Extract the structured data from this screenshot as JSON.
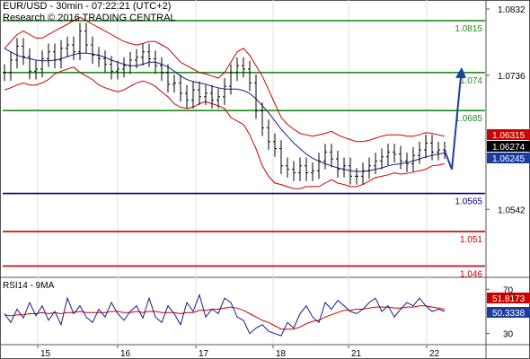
{
  "header": {
    "line1": "EUR/USD - 30min - 07:22:21 (UTC+2)",
    "line2": "Research © 2016 TRADING CENTRAL"
  },
  "rsi_title": "RSI14 - 9MA",
  "colors": {
    "price": "#000000",
    "bollinger": "#cc0000",
    "moving_average": "#1a1a8c",
    "resistance": "#228b22",
    "pivot": "#00008b",
    "support": "#cc0000",
    "arrow": "#1e3fa0",
    "rsi": "#1a1a8c",
    "rsi_ma": "#cc0000"
  },
  "chart_data": [
    {
      "type": "line",
      "subtype": "candlestick-bars",
      "ylim": [
        1.0445,
        1.0845
      ],
      "x_ticks": [
        "15",
        "16",
        "17",
        "18",
        "21",
        "22"
      ],
      "y_ticks": [
        "1.0832",
        "1.0736",
        "1.0542"
      ],
      "series": [
        {
          "values": [
            1.074,
            1.0758,
            1.0778,
            1.0763,
            1.0742,
            1.0745,
            1.076,
            1.077,
            1.0758,
            1.0775,
            1.078,
            1.077,
            1.08,
            1.078,
            1.0765,
            1.076,
            1.0752,
            1.0742,
            1.0745,
            1.075,
            1.0758,
            1.0762,
            1.077,
            1.076,
            1.075,
            1.074,
            1.0723,
            1.0725,
            1.071,
            1.07,
            1.0715,
            1.0705,
            1.071,
            1.07,
            1.0705,
            1.072,
            1.074,
            1.075,
            1.0745,
            1.0725,
            1.0685,
            1.066,
            1.064,
            1.063,
            1.0605,
            1.06,
            1.0595,
            1.0605,
            1.0595,
            1.0598,
            1.0612,
            1.0625,
            1.0615,
            1.06,
            1.0605,
            1.059,
            1.059,
            1.0598,
            1.0605,
            1.0612,
            1.0618,
            1.0625,
            1.0622,
            1.0612,
            1.0608,
            1.062,
            1.0628,
            1.0638,
            1.0625,
            1.0628,
            1.0627
          ]
        }
      ],
      "bollinger_upper": [
        1.0775,
        1.0785,
        1.0795,
        1.08,
        1.0795,
        1.079,
        1.079,
        1.0795,
        1.08,
        1.0805,
        1.081,
        1.0815,
        1.082,
        1.0815,
        1.081,
        1.0805,
        1.08,
        1.0795,
        1.079,
        1.0785,
        1.0782,
        1.078,
        1.0782,
        1.0785,
        1.0785,
        1.078,
        1.0775,
        1.0765,
        1.0755,
        1.075,
        1.0745,
        1.074,
        1.0738,
        1.0735,
        1.0732,
        1.074,
        1.0755,
        1.077,
        1.0775,
        1.0765,
        1.075,
        1.0735,
        1.0715,
        1.0695,
        1.0675,
        1.0665,
        1.0658,
        1.0652,
        1.065,
        1.0648,
        1.065,
        1.0652,
        1.0655,
        1.065,
        1.0646,
        1.0643,
        1.064,
        1.064,
        1.0642,
        1.0645,
        1.0648,
        1.065,
        1.065,
        1.065,
        1.0648,
        1.0648,
        1.065,
        1.0653,
        1.0652,
        1.065,
        1.0648
      ],
      "bollinger_lower": [
        1.0715,
        1.0718,
        1.0722,
        1.0725,
        1.0722,
        1.0722,
        1.0725,
        1.073,
        1.0738,
        1.0742,
        1.0745,
        1.0748,
        1.074,
        1.0735,
        1.073,
        1.0722,
        1.0718,
        1.0715,
        1.0712,
        1.0715,
        1.072,
        1.0725,
        1.0728,
        1.0725,
        1.072,
        1.0712,
        1.0705,
        1.0695,
        1.069,
        1.0688,
        1.069,
        1.0695,
        1.0698,
        1.0695,
        1.0692,
        1.0688,
        1.0675,
        1.067,
        1.0665,
        1.065,
        1.063,
        1.0605,
        1.059,
        1.058,
        1.0578,
        1.0575,
        1.0572,
        1.0572,
        1.0575,
        1.0575,
        1.0575,
        1.058,
        1.0585,
        1.058,
        1.0578,
        1.0575,
        1.0575,
        1.0578,
        1.0583,
        1.0588,
        1.059,
        1.0592,
        1.0595,
        1.0593,
        1.0594,
        1.0596,
        1.0598,
        1.06,
        1.0605,
        1.0606,
        1.0608
      ],
      "moving_average": [
        1.0775,
        1.077,
        1.0765,
        1.0762,
        1.076,
        1.0758,
        1.0757,
        1.0757,
        1.0758,
        1.076,
        1.0763,
        1.0766,
        1.0768,
        1.0768,
        1.0767,
        1.0765,
        1.0762,
        1.0758,
        1.0755,
        1.0752,
        1.075,
        1.075,
        1.0752,
        1.0755,
        1.0755,
        1.0752,
        1.0748,
        1.0742,
        1.0735,
        1.073,
        1.0727,
        1.0725,
        1.0723,
        1.072,
        1.0718,
        1.0716,
        1.0716,
        1.0716,
        1.0714,
        1.071,
        1.0702,
        1.0692,
        1.0682,
        1.067,
        1.0658,
        1.0648,
        1.0638,
        1.063,
        1.0622,
        1.0616,
        1.0612,
        1.0608,
        1.0605,
        1.0602,
        1.06,
        1.0598,
        1.0597,
        1.0597,
        1.0598,
        1.06,
        1.0602,
        1.0605,
        1.0607,
        1.0608,
        1.061,
        1.0612,
        1.0615,
        1.0618,
        1.062,
        1.0622,
        1.0624
      ],
      "horizontal_levels": [
        {
          "value": 1.0815,
          "label": "1.0815",
          "kind": "resistance"
        },
        {
          "value": 1.074,
          "label": "1.074",
          "kind": "resistance"
        },
        {
          "value": 1.0685,
          "label": "1.0685",
          "kind": "resistance"
        },
        {
          "value": 1.0565,
          "label": "1.0565",
          "kind": "pivot"
        },
        {
          "value": 1.051,
          "label": "1.051",
          "kind": "support"
        },
        {
          "value": 1.046,
          "label": "1.046",
          "kind": "support"
        }
      ],
      "price_markers": [
        {
          "value": 1.06315,
          "label": "1.06315",
          "bg": "#cc0000",
          "fg": "#ffffff"
        },
        {
          "value": 1.06274,
          "label": "1.06274",
          "bg": "#000000",
          "fg": "#ffffff"
        },
        {
          "value": 1.06245,
          "label": "1.06245",
          "bg": "#1a3c9c",
          "fg": "#ffffff"
        }
      ],
      "forecast_arrow": [
        [
          1.0627,
          1.06
        ],
        [
          1.06,
          1.074
        ]
      ]
    },
    {
      "type": "line",
      "title": "RSI14 - 9MA",
      "ylim": [
        20,
        80
      ],
      "y_ticks": [
        "70",
        "30"
      ],
      "series": [
        {
          "values": [
            48,
            40,
            52,
            44,
            58,
            46,
            55,
            42,
            50,
            38,
            62,
            48,
            55,
            45,
            40,
            52,
            45,
            58,
            48,
            42,
            50,
            55,
            44,
            62,
            45,
            40,
            55,
            48,
            38,
            58,
            50,
            65,
            45,
            52,
            48,
            62,
            58,
            45,
            42,
            30,
            35,
            38,
            32,
            30,
            28,
            40,
            35,
            48,
            55,
            45,
            40,
            58,
            52,
            60,
            55,
            50,
            48,
            52,
            58,
            62,
            50,
            55,
            45,
            52,
            58,
            55,
            62,
            55,
            50,
            52,
            50
          ]
        },
        {
          "values": [
            47,
            46,
            47,
            47,
            48,
            48,
            49,
            48,
            49,
            48,
            49,
            49,
            50,
            49,
            49,
            49,
            49,
            50,
            50,
            49,
            49,
            50,
            49,
            50,
            50,
            49,
            49,
            49,
            48,
            49,
            49,
            51,
            51,
            52,
            52,
            53,
            54,
            53,
            51,
            48,
            45,
            42,
            40,
            37,
            34,
            34,
            34,
            36,
            39,
            41,
            42,
            45,
            47,
            49,
            51,
            51,
            52,
            52,
            53,
            54,
            54,
            54,
            53,
            53,
            54,
            54,
            55,
            55,
            54,
            53,
            52
          ]
        }
      ],
      "value_markers": [
        {
          "value": 51.8173,
          "label": "51.8173",
          "bg": "#cc0000",
          "fg": "#ffffff"
        },
        {
          "value": 50.3338,
          "label": "50.3338",
          "bg": "#1a3c9c",
          "fg": "#ffffff"
        }
      ]
    }
  ]
}
